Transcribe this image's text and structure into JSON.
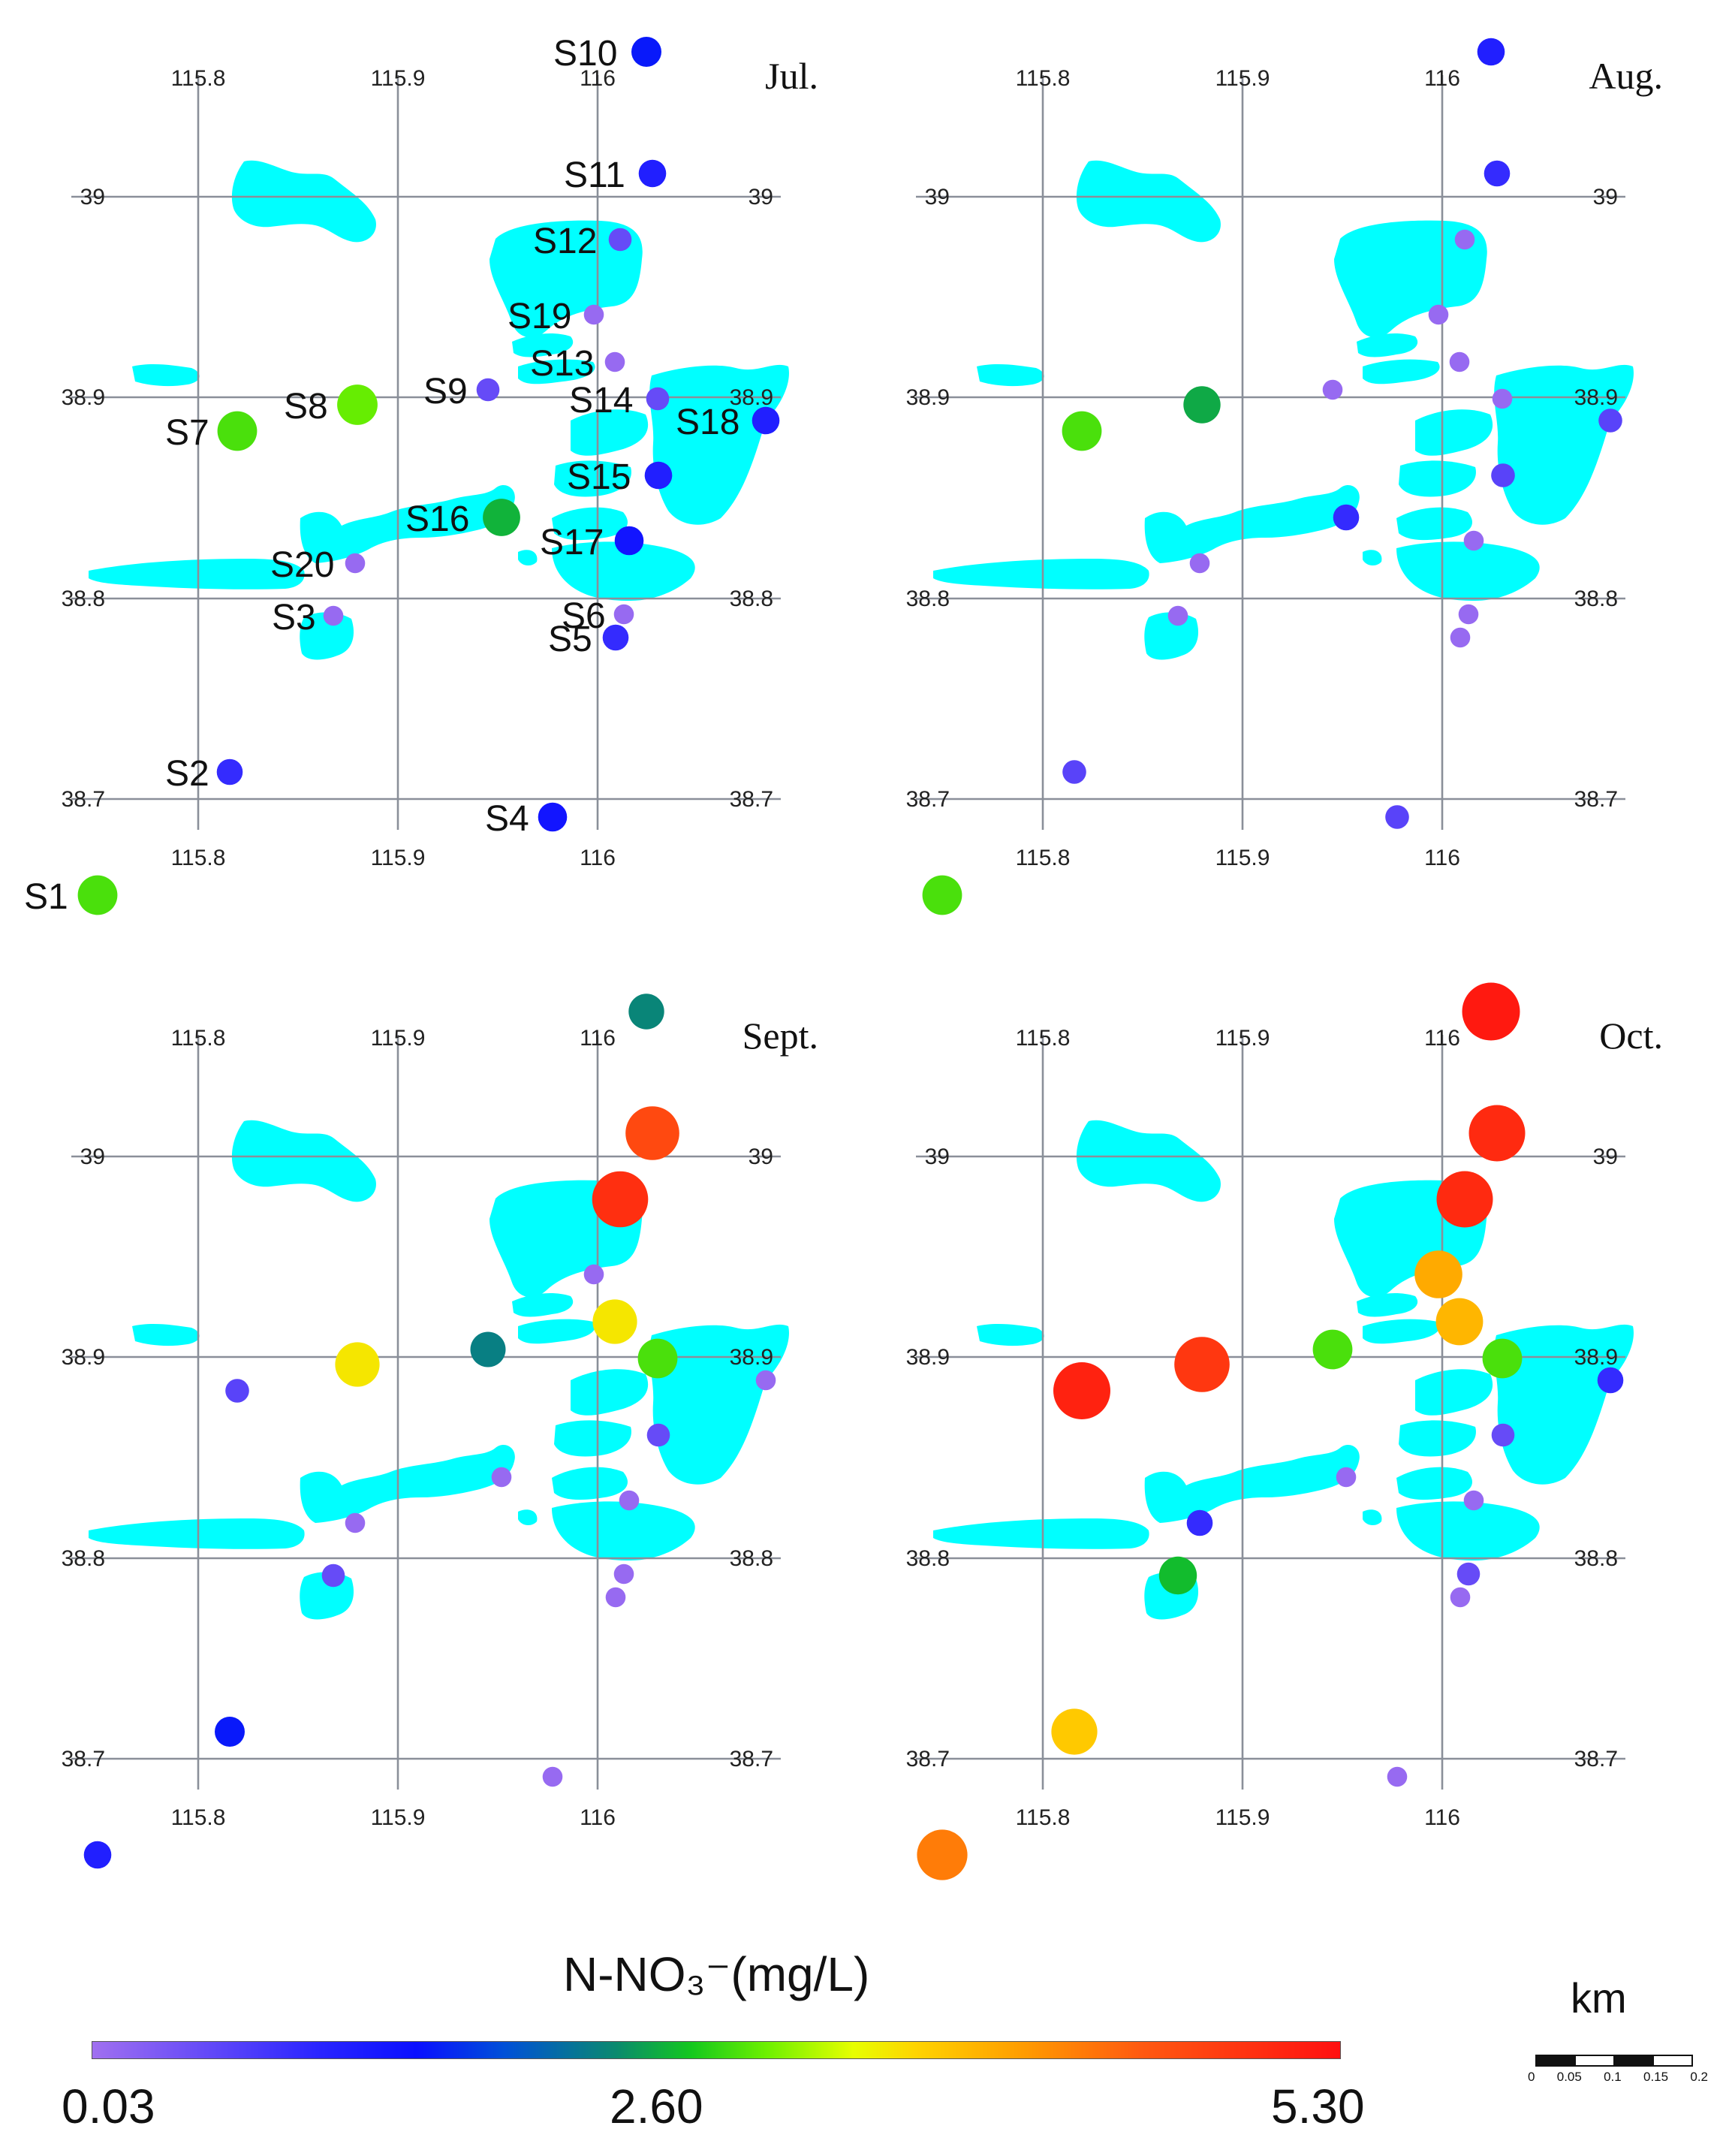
{
  "legend": {
    "title": "N-NO₃⁻(mg/L)",
    "min": 0.03,
    "mid": 2.6,
    "max": 5.3,
    "tick_labels": [
      "0.03",
      "2.60",
      "5.30"
    ]
  },
  "scale_bar": {
    "unit": "km",
    "tick_labels": [
      "0",
      "0.05",
      "0.1",
      "0.15",
      "0.2"
    ]
  },
  "axes": {
    "longitude_ticks": [
      "115.8",
      "115.9",
      "116"
    ],
    "latitude_ticks": [
      "39",
      "38.9",
      "38.8",
      "38.7"
    ]
  },
  "site_names": [
    "S1",
    "S2",
    "S3",
    "S4",
    "S5",
    "S6",
    "S7",
    "S8",
    "S9",
    "S10",
    "S11",
    "S12",
    "S13",
    "S14",
    "S15",
    "S16",
    "S17",
    "S18",
    "S19",
    "S20"
  ],
  "panels": [
    {
      "month": "Jul.",
      "show_site_labels": true,
      "values": {
        "S1": 2.75,
        "S2": 0.9,
        "S3": 0.1,
        "S4": 1.3,
        "S5": 0.9,
        "S6": 0.1,
        "S7": 2.75,
        "S8": 2.85,
        "S9": 0.5,
        "S10": 1.45,
        "S11": 1.1,
        "S12": 0.5,
        "S13": 0.1,
        "S14": 0.5,
        "S15": 1.1,
        "S16": 2.45,
        "S17": 1.3,
        "S18": 1.1,
        "S19": 0.1,
        "S20": 0.1
      }
    },
    {
      "month": "Aug.",
      "show_site_labels": false,
      "values": {
        "S1": 2.75,
        "S2": 0.6,
        "S3": 0.1,
        "S4": 0.6,
        "S5": 0.1,
        "S6": 0.1,
        "S7": 2.75,
        "S8": 2.4,
        "S9": 0.1,
        "S10": 1.1,
        "S11": 0.9,
        "S12": 0.1,
        "S13": 0.1,
        "S14": 0.1,
        "S15": 0.6,
        "S16": 0.9,
        "S17": 0.1,
        "S18": 0.6,
        "S19": 0.1,
        "S20": 0.1
      }
    },
    {
      "month": "Sept.",
      "show_site_labels": false,
      "values": {
        "S1": 1.1,
        "S2": 1.45,
        "S3": 0.5,
        "S4": 0.1,
        "S5": 0.1,
        "S6": 0.1,
        "S7": 0.6,
        "S8": 3.4,
        "S9": 2.15,
        "S10": 2.2,
        "S11": 4.65,
        "S12": 4.95,
        "S13": 3.4,
        "S14": 2.75,
        "S15": 0.5,
        "S16": 0.1,
        "S17": 0.1,
        "S18": 0.1,
        "S19": 0.1,
        "S20": 0.1
      }
    },
    {
      "month": "Oct.",
      "show_site_labels": false,
      "values": {
        "S1": 4.2,
        "S2": 3.6,
        "S3": 2.5,
        "S4": 0.1,
        "S5": 0.1,
        "S6": 0.5,
        "S7": 5.1,
        "S8": 4.85,
        "S9": 2.75,
        "S10": 5.2,
        "S11": 5.0,
        "S12": 5.0,
        "S13": 3.75,
        "S14": 2.75,
        "S15": 0.5,
        "S16": 0.1,
        "S17": 0.1,
        "S18": 0.9,
        "S19": 3.85,
        "S20": 0.9
      }
    }
  ]
}
